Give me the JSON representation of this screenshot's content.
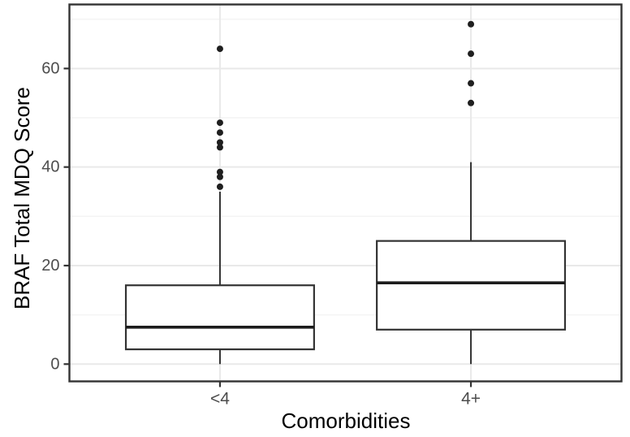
{
  "chart_data": {
    "type": "boxplot",
    "title": "",
    "xlabel": "Comorbidities",
    "ylabel": "BRAF Total MDQ Score",
    "categories": [
      "<4",
      "4+"
    ],
    "series": [
      {
        "category": "<4",
        "whisker_low": 0,
        "q1": 3,
        "median": 7.5,
        "q3": 16,
        "whisker_high": 35,
        "outliers": [
          36,
          38,
          39,
          44,
          45,
          47,
          49,
          64
        ]
      },
      {
        "category": "4+",
        "whisker_low": 0,
        "q1": 7,
        "median": 16.5,
        "q3": 25,
        "whisker_high": 41,
        "outliers": [
          53,
          57,
          63,
          69
        ]
      }
    ],
    "y_axis": {
      "ticks": [
        0,
        20,
        40,
        60
      ],
      "tick_labels": [
        "0",
        "20",
        "40",
        "60"
      ],
      "minor_ticks": [
        10,
        30,
        50,
        70
      ],
      "ylim": [
        -3.5,
        73
      ]
    },
    "x_axis": {
      "tick_labels": [
        "<4",
        "4+"
      ]
    },
    "legend": "none",
    "grid": "horizontal major and minor lines; vertical line at each category",
    "colors": {
      "background": "#ffffff",
      "panel_background": "#ffffff",
      "panel_border": "#333333",
      "grid_major": "#e9e9e9",
      "grid_minor": "#f4f4f4",
      "box_fill": "#ffffff",
      "box_border": "#333333",
      "median_line": "#1c1c1c",
      "whisker": "#333333",
      "outlier_point": "#1f1f1f",
      "tick_mark": "#333333",
      "tick_label": "#4d4d4d",
      "axis_title": "#000000"
    }
  }
}
